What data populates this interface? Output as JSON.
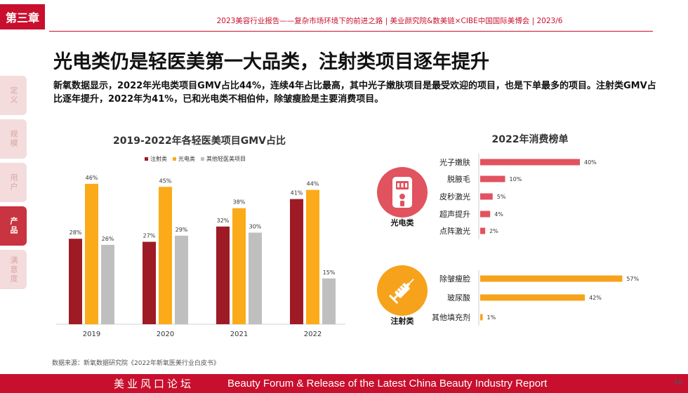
{
  "header": {
    "chapter": "第三章",
    "topline": "2023美容行业报告——复杂市场环境下的前进之路   |   美业颜究院&数美链×CIBE中国国际美博会   |   2023/6"
  },
  "sidebar": {
    "tabs": [
      {
        "label": "定义",
        "active": false
      },
      {
        "label": "规模",
        "active": false
      },
      {
        "label": "用户",
        "active": false
      },
      {
        "label": "产品",
        "active": true
      },
      {
        "label": "满意度",
        "active": false
      }
    ]
  },
  "headline": "光电类仍是轻医美第一大品类，注射类项目逐年提升",
  "intro": "新氧数据显示，2022年光电类项目GMV占比44%，连续4年占比最高，其中光子嫩肤项目是最受欢迎的项目，也是下单最多的项目。注射类GMV占比逐年提升，2022年为41%，已和光电类不相伯仲，除皱瘦脸是主要消费项目。",
  "colors": {
    "brand": "#c8102e",
    "injection": "#9e1b26",
    "photoelectric": "#fbab19",
    "other": "#bfbfbf",
    "rank_red": "#e0535f",
    "rank_orange": "#f7a21b"
  },
  "chart_data": [
    {
      "type": "bar",
      "title": "2019-2022年各轻医美项目GMV占比",
      "categories": [
        "2019",
        "2020",
        "2021",
        "2022"
      ],
      "series": [
        {
          "name": "注射类",
          "values": [
            28,
            27,
            32,
            41
          ]
        },
        {
          "name": "光电类",
          "values": [
            46,
            45,
            38,
            44
          ]
        },
        {
          "name": "其他轻医美项目",
          "values": [
            26,
            29,
            30,
            15
          ]
        }
      ],
      "value_suffix": "%",
      "legend": "top",
      "grid": false
    },
    {
      "type": "bar",
      "title": "2022年消费榜单",
      "orientation": "horizontal",
      "groups": [
        {
          "name": "光电类",
          "icon": "device-icon",
          "categories": [
            "光子嫩肤",
            "脱腋毛",
            "皮秒激光",
            "超声提升",
            "点阵激光"
          ],
          "values": [
            40,
            10,
            5,
            4,
            2
          ]
        },
        {
          "name": "注射类",
          "icon": "syringe-icon",
          "categories": [
            "除皱瘦脸",
            "玻尿酸",
            "其他填充剂"
          ],
          "values": [
            57,
            42,
            1
          ]
        }
      ],
      "value_suffix": "%"
    }
  ],
  "source": "数据来源：新氧数据研究院《2022年新氧医美行业白皮书》",
  "footer": {
    "forum": "美业风口论坛",
    "english": "Beauty Forum & Release of the Latest China Beauty Industry Report",
    "page": "46"
  }
}
